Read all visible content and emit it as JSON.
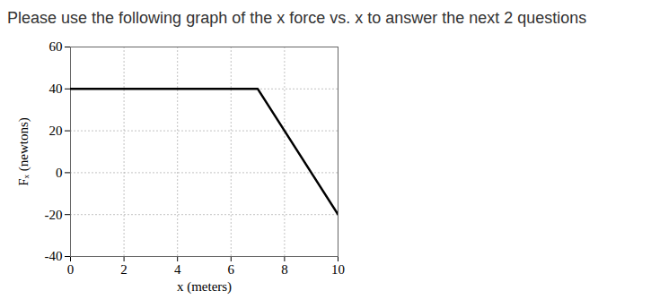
{
  "chart_data": {
    "type": "line",
    "title": "Please use the following graph of the x force vs. x to answer the next 2 questions",
    "x_label": "x (meters)",
    "y_label": "Fₓ (newtons)",
    "x": [
      0,
      7,
      10
    ],
    "values": [
      40,
      40,
      -20
    ],
    "color": "#000000",
    "xlim": [
      0,
      10
    ],
    "xticks": [
      0,
      2,
      4,
      6,
      8,
      10
    ],
    "ylim": [
      -40,
      60
    ],
    "yticks": [
      -40,
      -20,
      0,
      20,
      40,
      60
    ],
    "grid": true
  }
}
